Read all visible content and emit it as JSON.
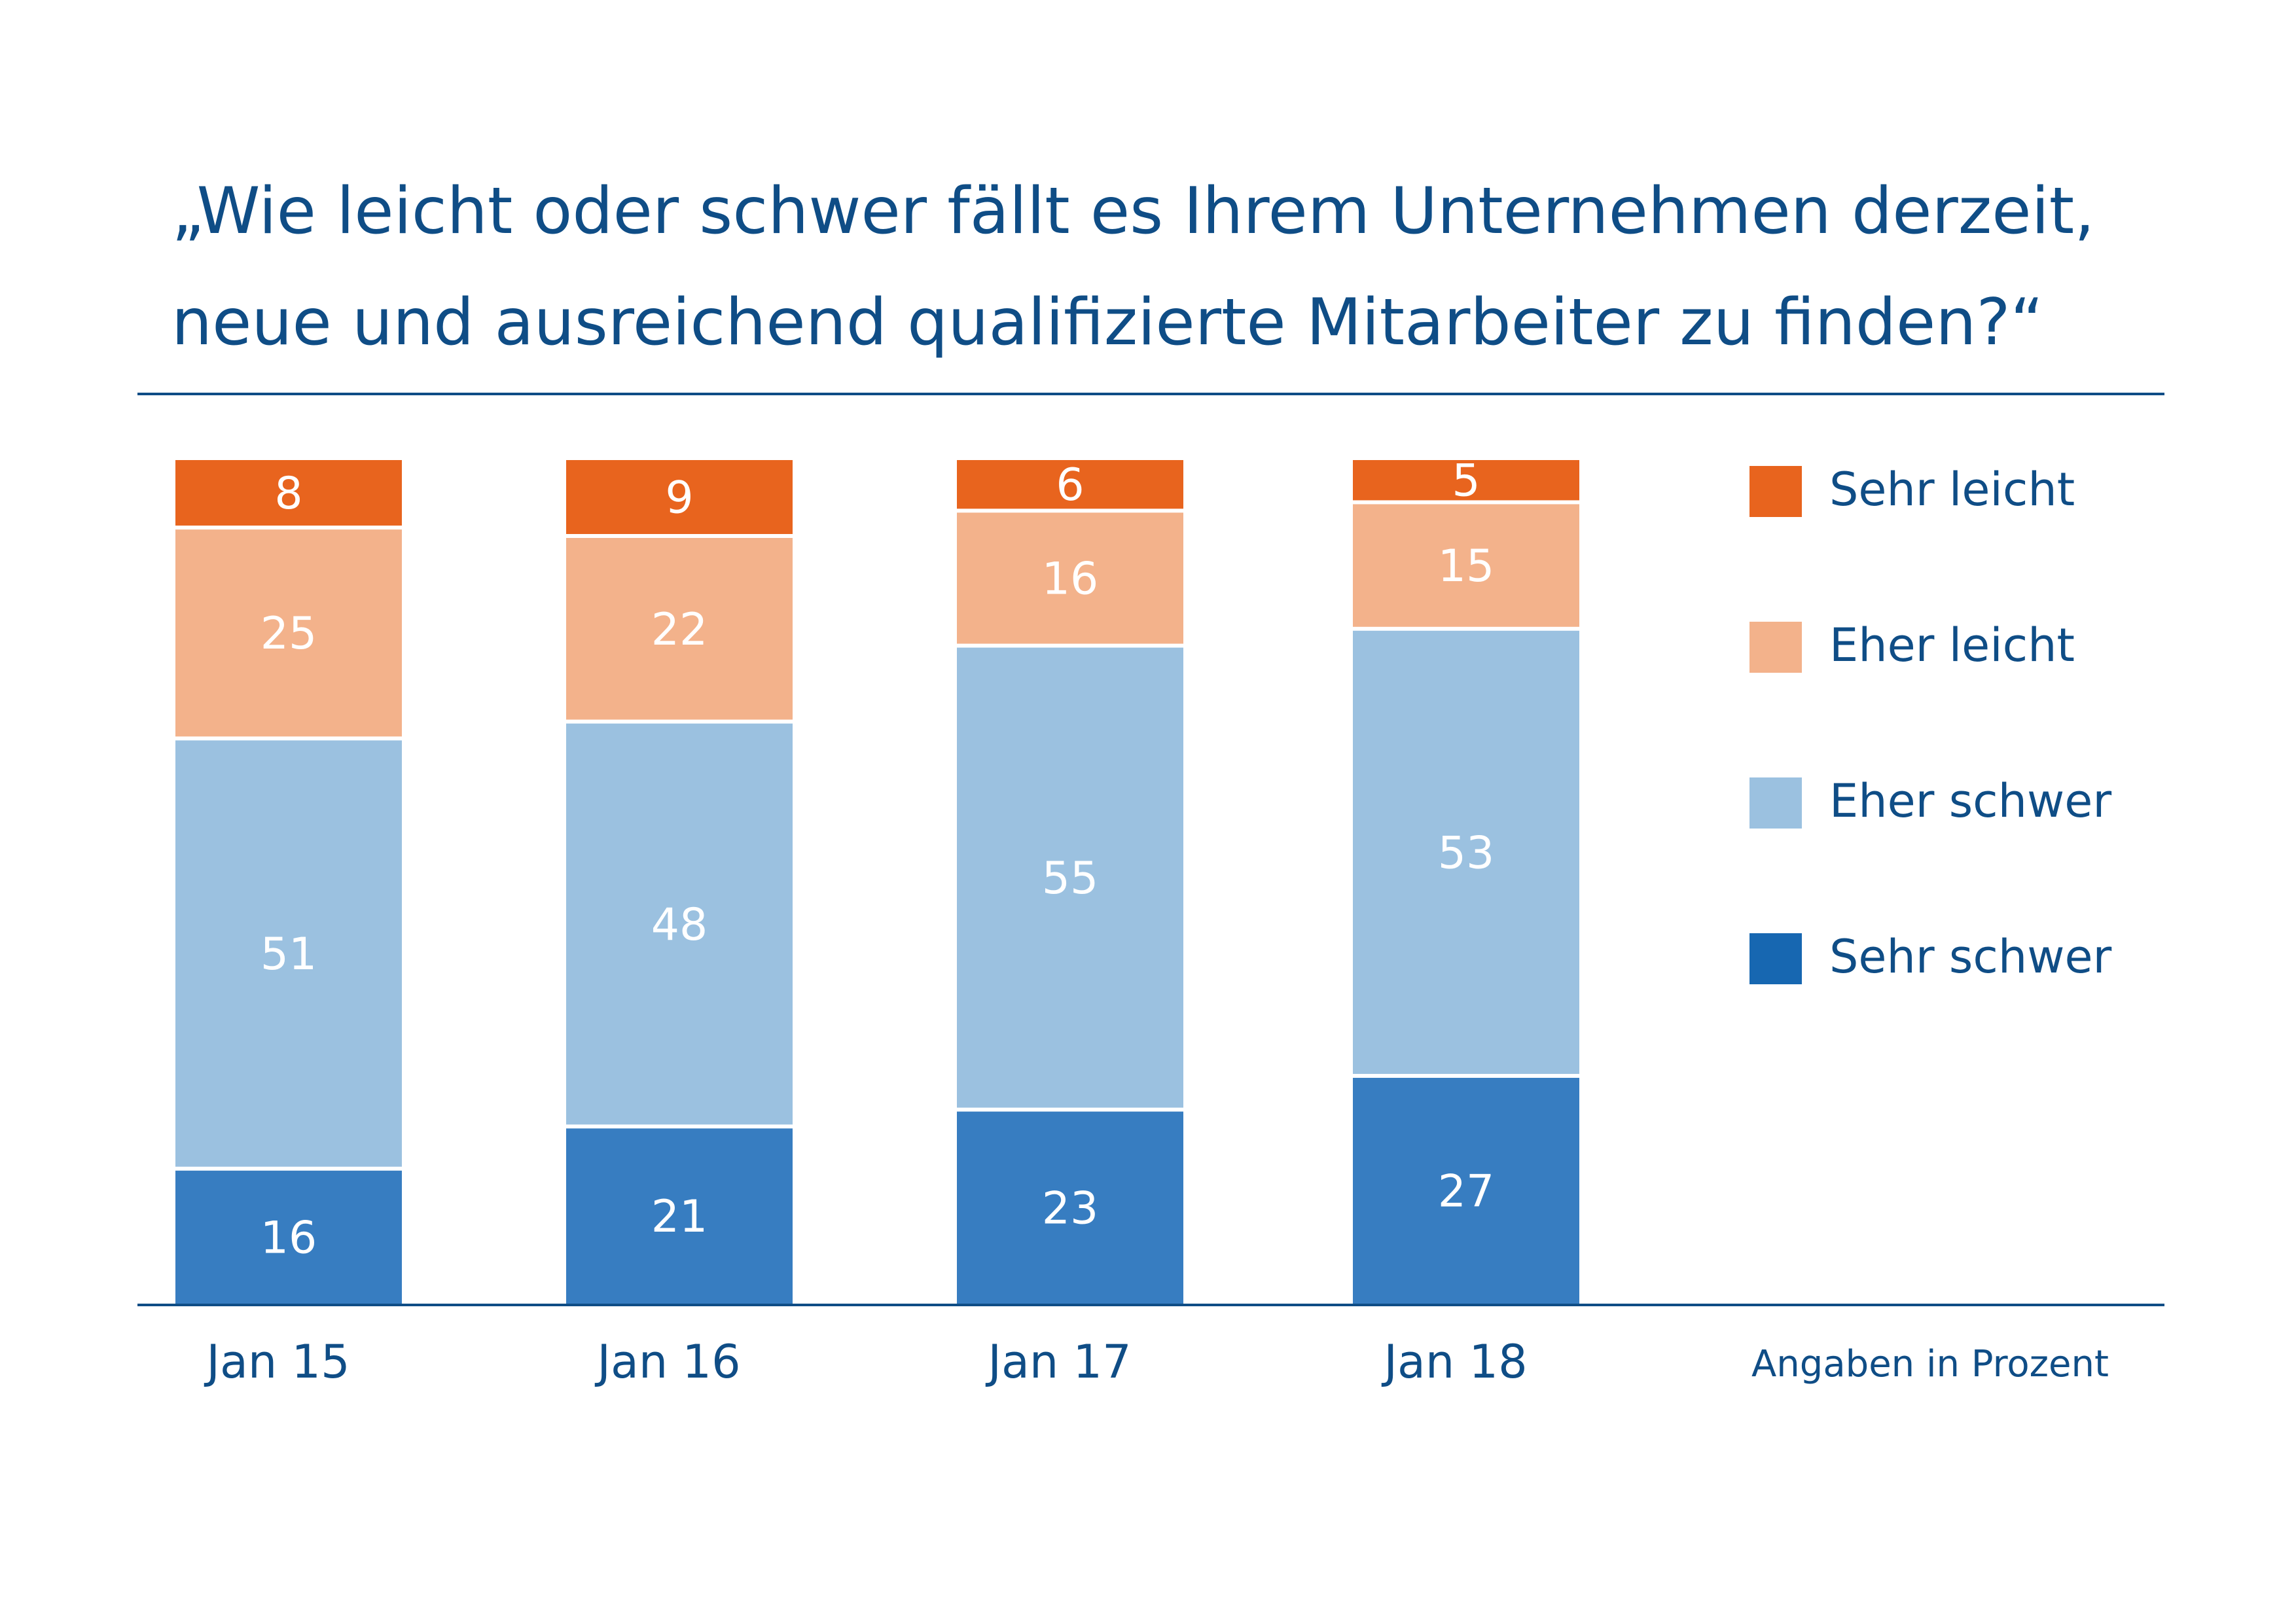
{
  "title_lines": [
    "„Wie leicht oder schwer fällt es Ihrem Unternehmen derzeit,",
    "neue und ausreichend qualifizierte Mitarbeiter zu finden?“"
  ],
  "unit_note": "Angaben in Prozent",
  "colors": {
    "title": "#0f4d86",
    "rule": "#0f4d86",
    "sehr_leicht": "#e8641e",
    "eher_leicht": "#f3b28b",
    "eher_schwer": "#9bc1e0",
    "sehr_schwer": "#377dc1",
    "legend_sehr_schwer": "#1767b1"
  },
  "chart_data": {
    "type": "bar",
    "stacked": true,
    "categories": [
      "Jan 15",
      "Jan 16",
      "Jan 17",
      "Jan 18"
    ],
    "series": [
      {
        "name": "Sehr schwer",
        "values": [
          16,
          21,
          23,
          27
        ]
      },
      {
        "name": "Eher schwer",
        "values": [
          51,
          48,
          55,
          53
        ]
      },
      {
        "name": "Eher leicht",
        "values": [
          25,
          22,
          16,
          15
        ]
      },
      {
        "name": "Sehr leicht",
        "values": [
          8,
          9,
          6,
          5
        ]
      }
    ],
    "legend_order": [
      "Sehr leicht",
      "Eher leicht",
      "Eher schwer",
      "Sehr schwer"
    ],
    "legend_position": "right",
    "ylim": [
      0,
      100
    ],
    "grid": false,
    "value_labels": true
  }
}
